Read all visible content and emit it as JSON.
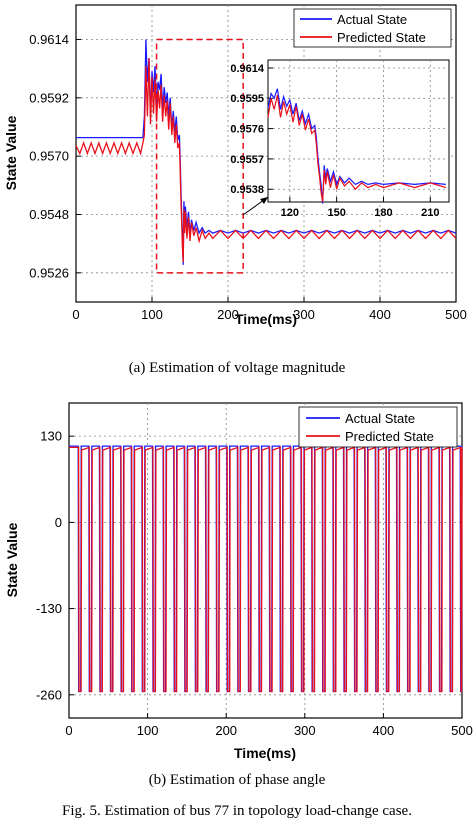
{
  "chart_data": [
    {
      "type": "line",
      "caption": "(a) Estimation of voltage magnitude",
      "xlabel": "Time(ms)",
      "ylabel": "State Value",
      "xlim": [
        0,
        500
      ],
      "ylim": [
        0.9515,
        0.9627
      ],
      "xticks": [
        0,
        100,
        200,
        300,
        400,
        500
      ],
      "yticks": [
        0.9526,
        0.9548,
        0.957,
        0.9592,
        0.9614
      ],
      "ytick_labels": [
        "0.9526",
        "0.9548",
        "0.9570",
        "0.9592",
        "0.9614"
      ],
      "grid": true,
      "legend_position": "top-right",
      "colors": {
        "actual": "#1a1aff",
        "predicted": "#e8101a",
        "zoom_box": "#e8101a"
      },
      "series": [
        {
          "name": "Actual State",
          "x": [
            0,
            5,
            10,
            15,
            20,
            25,
            30,
            35,
            40,
            45,
            50,
            55,
            60,
            65,
            70,
            75,
            80,
            85,
            88,
            90,
            92,
            94,
            96,
            98,
            100,
            102,
            104,
            106,
            108,
            110,
            112,
            114,
            116,
            118,
            120,
            122,
            124,
            126,
            128,
            130,
            132,
            134,
            136,
            137,
            138,
            139,
            140,
            141,
            142,
            143,
            144,
            146,
            148,
            150,
            152,
            155,
            158,
            162,
            166,
            170,
            175,
            180,
            190,
            200,
            210,
            220,
            230,
            240,
            250,
            260,
            270,
            280,
            290,
            300,
            310,
            320,
            330,
            340,
            350,
            360,
            370,
            380,
            390,
            400,
            410,
            420,
            430,
            440,
            450,
            460,
            470,
            480,
            490,
            500
          ],
          "y": [
            0.9577,
            0.9577,
            0.9577,
            0.9577,
            0.9577,
            0.9577,
            0.9577,
            0.9577,
            0.9577,
            0.9577,
            0.9577,
            0.9577,
            0.9577,
            0.9577,
            0.9577,
            0.9577,
            0.9577,
            0.9577,
            0.9577,
            0.9585,
            0.9614,
            0.9598,
            0.9607,
            0.9585,
            0.9602,
            0.9594,
            0.9604,
            0.9589,
            0.9598,
            0.9595,
            0.9601,
            0.9588,
            0.9596,
            0.959,
            0.9594,
            0.9585,
            0.9592,
            0.9581,
            0.9587,
            0.9579,
            0.9585,
            0.9576,
            0.9578,
            0.957,
            0.9558,
            0.9549,
            0.9541,
            0.9529,
            0.9553,
            0.9545,
            0.9551,
            0.9543,
            0.9549,
            0.9541,
            0.9546,
            0.9542,
            0.9545,
            0.9541,
            0.9543,
            0.9541,
            0.9542,
            0.9541,
            0.9542,
            0.9541,
            0.9542,
            0.9541,
            0.9542,
            0.9541,
            0.9542,
            0.9541,
            0.9542,
            0.9541,
            0.9542,
            0.9541,
            0.9542,
            0.9541,
            0.9542,
            0.9541,
            0.9542,
            0.9541,
            0.9542,
            0.9541,
            0.9542,
            0.9541,
            0.9542,
            0.9541,
            0.9542,
            0.9541,
            0.9542,
            0.9541,
            0.9542,
            0.9541,
            0.9542,
            0.9541
          ]
        },
        {
          "name": "Predicted State",
          "x": [
            0,
            5,
            10,
            15,
            20,
            25,
            30,
            35,
            40,
            45,
            50,
            55,
            60,
            65,
            70,
            75,
            80,
            85,
            88,
            90,
            92,
            94,
            96,
            98,
            100,
            102,
            104,
            106,
            108,
            110,
            112,
            114,
            116,
            118,
            120,
            122,
            124,
            126,
            128,
            130,
            132,
            134,
            136,
            137,
            138,
            139,
            140,
            141,
            142,
            143,
            144,
            146,
            148,
            150,
            152,
            155,
            158,
            162,
            166,
            170,
            175,
            180,
            190,
            200,
            210,
            220,
            230,
            240,
            250,
            260,
            270,
            280,
            290,
            300,
            310,
            320,
            330,
            340,
            350,
            360,
            370,
            380,
            390,
            400,
            410,
            420,
            430,
            440,
            450,
            460,
            470,
            480,
            490,
            500
          ],
          "y": [
            0.9574,
            0.9571,
            0.9575,
            0.9571,
            0.9575,
            0.9571,
            0.9575,
            0.9571,
            0.9575,
            0.9571,
            0.9575,
            0.9571,
            0.9575,
            0.9571,
            0.9575,
            0.9571,
            0.9575,
            0.9571,
            0.9575,
            0.9578,
            0.9604,
            0.9585,
            0.9607,
            0.9582,
            0.96,
            0.9586,
            0.9599,
            0.9583,
            0.9595,
            0.9588,
            0.9597,
            0.9583,
            0.9593,
            0.9585,
            0.9591,
            0.958,
            0.959,
            0.9578,
            0.9585,
            0.9575,
            0.9582,
            0.9573,
            0.9575,
            0.9566,
            0.9554,
            0.9546,
            0.9536,
            0.953,
            0.955,
            0.9541,
            0.9549,
            0.9539,
            0.9547,
            0.9538,
            0.9545,
            0.954,
            0.9543,
            0.9538,
            0.9542,
            0.9539,
            0.9541,
            0.9539,
            0.9542,
            0.9539,
            0.9542,
            0.9539,
            0.9542,
            0.9539,
            0.9542,
            0.9539,
            0.9542,
            0.9539,
            0.9542,
            0.9539,
            0.9542,
            0.9539,
            0.9542,
            0.9539,
            0.9542,
            0.9539,
            0.9542,
            0.9539,
            0.9542,
            0.9539,
            0.9542,
            0.9539,
            0.9542,
            0.9539,
            0.9542,
            0.9539,
            0.9542,
            0.9539,
            0.9542,
            0.9539
          ]
        }
      ],
      "zoom_region": {
        "x": [
          106,
          220
        ],
        "y": [
          0.9526,
          0.9614
        ]
      },
      "inset": {
        "xlim": [
          106,
          222
        ],
        "ylim": [
          0.953,
          0.9619
        ],
        "xticks": [
          120,
          150,
          180,
          210
        ],
        "yticks": [
          0.9538,
          0.9557,
          0.9576,
          0.9595,
          0.9614
        ],
        "grid": true
      }
    },
    {
      "type": "line",
      "caption": "(b) Estimation of phase angle",
      "xlabel": "Time(ms)",
      "ylabel": "State Value",
      "xlim": [
        0,
        500
      ],
      "ylim": [
        -295,
        180
      ],
      "xticks": [
        0,
        100,
        200,
        300,
        400,
        500
      ],
      "yticks": [
        -260,
        -130,
        0,
        130
      ],
      "grid": true,
      "legend_position": "top-right",
      "colors": {
        "actual": "#1a1aff",
        "predicted": "#e8101a"
      },
      "square_wave": {
        "period_ms": 13.5,
        "high_fraction": 0.72,
        "start_ms": 2
      },
      "series": [
        {
          "name": "Actual State",
          "high": 115,
          "low": -255
        },
        {
          "name": "Predicted State",
          "high": 113,
          "low": -255
        }
      ]
    }
  ],
  "figure_caption": "Fig. 5.  Estimation of bus 77 in topology load-change case."
}
